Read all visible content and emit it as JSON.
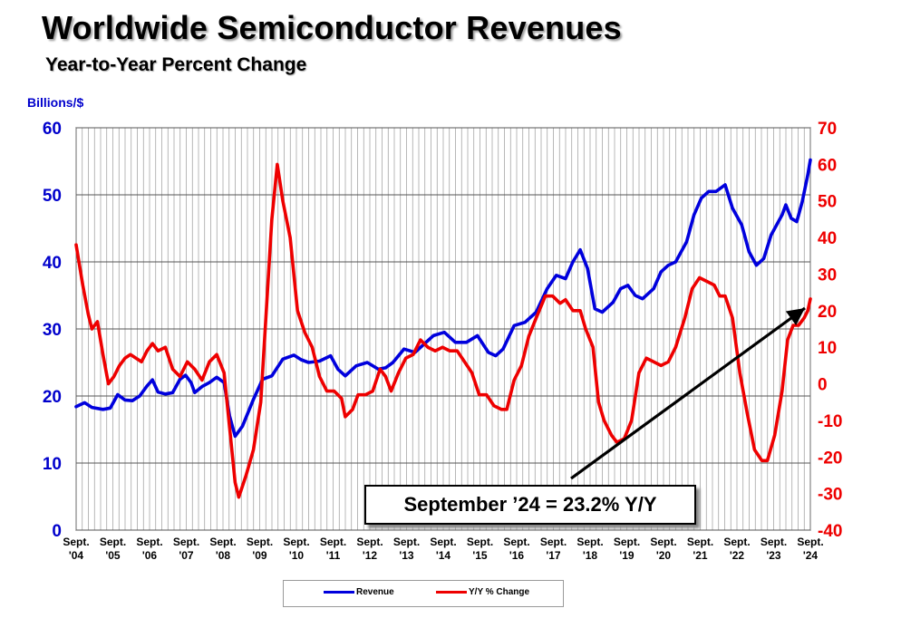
{
  "chart_data": {
    "type": "line",
    "title": "Worldwide Semiconductor Revenues",
    "subtitle": "Year-to-Year Percent Change",
    "ylabel_left": "Billions/$",
    "ylim_left": [
      0,
      60
    ],
    "yticks_left": [
      0,
      10,
      20,
      30,
      40,
      50,
      60
    ],
    "ylim_right": [
      -40,
      70
    ],
    "yticks_right": [
      -40,
      -30,
      -20,
      -10,
      0,
      10,
      20,
      30,
      40,
      50,
      60,
      70
    ],
    "x_range": [
      2004.67,
      2024.67
    ],
    "x_ticks": [
      {
        "line1": "Sept.",
        "line2": "'04"
      },
      {
        "line1": "Sept.",
        "line2": "'05"
      },
      {
        "line1": "Sept.",
        "line2": "'06"
      },
      {
        "line1": "Sept.",
        "line2": "'07"
      },
      {
        "line1": "Sept.",
        "line2": "'08"
      },
      {
        "line1": "Sept.",
        "line2": "'09"
      },
      {
        "line1": "Sept.",
        "line2": "'10"
      },
      {
        "line1": "Sept.",
        "line2": "'11"
      },
      {
        "line1": "Sept.",
        "line2": "'12"
      },
      {
        "line1": "Sept.",
        "line2": "'13"
      },
      {
        "line1": "Sept.",
        "line2": "'14"
      },
      {
        "line1": "Sept.",
        "line2": "'15"
      },
      {
        "line1": "Sept.",
        "line2": "'16"
      },
      {
        "line1": "Sept.",
        "line2": "'17"
      },
      {
        "line1": "Sept.",
        "line2": "'18"
      },
      {
        "line1": "Sept.",
        "line2": "'19"
      },
      {
        "line1": "Sept.",
        "line2": "'20"
      },
      {
        "line1": "Sept.",
        "line2": "'21"
      },
      {
        "line1": "Sept.",
        "line2": "'22"
      },
      {
        "line1": "Sept.",
        "line2": "'23"
      },
      {
        "line1": "Sept.",
        "line2": "'24"
      }
    ],
    "grid": true,
    "series": [
      {
        "name": "Revenue",
        "axis": "left",
        "color": "#0000dd",
        "points": [
          [
            2004.67,
            18.4
          ],
          [
            2004.9,
            19.0
          ],
          [
            2005.1,
            18.3
          ],
          [
            2005.4,
            18.0
          ],
          [
            2005.6,
            18.2
          ],
          [
            2005.8,
            20.2
          ],
          [
            2006.0,
            19.4
          ],
          [
            2006.2,
            19.3
          ],
          [
            2006.4,
            20.0
          ],
          [
            2006.6,
            21.5
          ],
          [
            2006.75,
            22.4
          ],
          [
            2006.9,
            20.6
          ],
          [
            2007.1,
            20.3
          ],
          [
            2007.3,
            20.5
          ],
          [
            2007.5,
            22.5
          ],
          [
            2007.65,
            23.1
          ],
          [
            2007.8,
            22.0
          ],
          [
            2007.9,
            20.5
          ],
          [
            2008.1,
            21.4
          ],
          [
            2008.3,
            22.0
          ],
          [
            2008.5,
            22.8
          ],
          [
            2008.7,
            22.0
          ],
          [
            2008.85,
            17.0
          ],
          [
            2009.0,
            14.0
          ],
          [
            2009.2,
            15.5
          ],
          [
            2009.5,
            19.5
          ],
          [
            2009.75,
            22.5
          ],
          [
            2010.0,
            23.0
          ],
          [
            2010.3,
            25.5
          ],
          [
            2010.6,
            26.1
          ],
          [
            2010.8,
            25.4
          ],
          [
            2011.0,
            25.0
          ],
          [
            2011.3,
            25.2
          ],
          [
            2011.6,
            26.0
          ],
          [
            2011.8,
            24.0
          ],
          [
            2012.0,
            23.0
          ],
          [
            2012.3,
            24.5
          ],
          [
            2012.6,
            25.0
          ],
          [
            2012.9,
            24.0
          ],
          [
            2013.1,
            24.2
          ],
          [
            2013.3,
            25.0
          ],
          [
            2013.6,
            27.0
          ],
          [
            2013.9,
            26.5
          ],
          [
            2014.1,
            27.5
          ],
          [
            2014.4,
            29.0
          ],
          [
            2014.7,
            29.5
          ],
          [
            2015.0,
            28.0
          ],
          [
            2015.3,
            28.0
          ],
          [
            2015.6,
            29.0
          ],
          [
            2015.9,
            26.5
          ],
          [
            2016.1,
            26.0
          ],
          [
            2016.3,
            27.0
          ],
          [
            2016.6,
            30.5
          ],
          [
            2016.9,
            31.0
          ],
          [
            2017.2,
            32.5
          ],
          [
            2017.5,
            36.0
          ],
          [
            2017.75,
            38.0
          ],
          [
            2018.0,
            37.5
          ],
          [
            2018.2,
            40.0
          ],
          [
            2018.4,
            41.8
          ],
          [
            2018.6,
            39.0
          ],
          [
            2018.8,
            33.0
          ],
          [
            2019.0,
            32.5
          ],
          [
            2019.3,
            34.0
          ],
          [
            2019.5,
            36.0
          ],
          [
            2019.7,
            36.5
          ],
          [
            2019.9,
            35.0
          ],
          [
            2020.1,
            34.5
          ],
          [
            2020.4,
            36.0
          ],
          [
            2020.6,
            38.5
          ],
          [
            2020.8,
            39.5
          ],
          [
            2021.0,
            40.0
          ],
          [
            2021.3,
            43.0
          ],
          [
            2021.5,
            47.0
          ],
          [
            2021.7,
            49.5
          ],
          [
            2021.9,
            50.5
          ],
          [
            2022.1,
            50.5
          ],
          [
            2022.35,
            51.5
          ],
          [
            2022.55,
            48.0
          ],
          [
            2022.8,
            45.5
          ],
          [
            2023.0,
            41.5
          ],
          [
            2023.2,
            39.5
          ],
          [
            2023.4,
            40.5
          ],
          [
            2023.6,
            44.0
          ],
          [
            2023.9,
            47.0
          ],
          [
            2024.0,
            48.5
          ],
          [
            2024.15,
            46.5
          ],
          [
            2024.3,
            46.0
          ],
          [
            2024.45,
            49.0
          ],
          [
            2024.6,
            53.0
          ],
          [
            2024.67,
            55.2
          ]
        ]
      },
      {
        "name": "Y/Y % Change",
        "axis": "right",
        "color": "#ee0000",
        "points": [
          [
            2004.67,
            38
          ],
          [
            2004.85,
            27
          ],
          [
            2005.0,
            19
          ],
          [
            2005.1,
            15
          ],
          [
            2005.25,
            17
          ],
          [
            2005.4,
            8
          ],
          [
            2005.55,
            0
          ],
          [
            2005.7,
            2
          ],
          [
            2005.85,
            5
          ],
          [
            2006.0,
            7
          ],
          [
            2006.15,
            8
          ],
          [
            2006.3,
            7
          ],
          [
            2006.45,
            6
          ],
          [
            2006.6,
            9
          ],
          [
            2006.75,
            11
          ],
          [
            2006.9,
            9
          ],
          [
            2007.1,
            10
          ],
          [
            2007.3,
            4
          ],
          [
            2007.5,
            2
          ],
          [
            2007.7,
            6
          ],
          [
            2007.9,
            4
          ],
          [
            2008.1,
            1
          ],
          [
            2008.3,
            6
          ],
          [
            2008.5,
            8
          ],
          [
            2008.7,
            3
          ],
          [
            2008.85,
            -12
          ],
          [
            2009.0,
            -27
          ],
          [
            2009.1,
            -31
          ],
          [
            2009.3,
            -25
          ],
          [
            2009.5,
            -18
          ],
          [
            2009.7,
            -5
          ],
          [
            2009.85,
            20
          ],
          [
            2010.0,
            45
          ],
          [
            2010.15,
            60
          ],
          [
            2010.3,
            50
          ],
          [
            2010.5,
            40
          ],
          [
            2010.7,
            20
          ],
          [
            2010.9,
            14
          ],
          [
            2011.1,
            10
          ],
          [
            2011.3,
            2
          ],
          [
            2011.5,
            -2
          ],
          [
            2011.7,
            -2
          ],
          [
            2011.9,
            -4
          ],
          [
            2012.0,
            -9
          ],
          [
            2012.2,
            -7
          ],
          [
            2012.35,
            -3
          ],
          [
            2012.55,
            -3
          ],
          [
            2012.75,
            -2
          ],
          [
            2012.95,
            4
          ],
          [
            2013.1,
            2
          ],
          [
            2013.25,
            -2
          ],
          [
            2013.45,
            3
          ],
          [
            2013.65,
            7
          ],
          [
            2013.85,
            8
          ],
          [
            2014.05,
            12
          ],
          [
            2014.25,
            10
          ],
          [
            2014.45,
            9
          ],
          [
            2014.65,
            10
          ],
          [
            2014.85,
            9
          ],
          [
            2015.05,
            9
          ],
          [
            2015.25,
            6
          ],
          [
            2015.45,
            3
          ],
          [
            2015.65,
            -3
          ],
          [
            2015.85,
            -3
          ],
          [
            2016.05,
            -6
          ],
          [
            2016.25,
            -7
          ],
          [
            2016.4,
            -7
          ],
          [
            2016.6,
            1
          ],
          [
            2016.8,
            5
          ],
          [
            2017.0,
            13
          ],
          [
            2017.2,
            18
          ],
          [
            2017.45,
            24
          ],
          [
            2017.65,
            24
          ],
          [
            2017.85,
            22
          ],
          [
            2018.0,
            23
          ],
          [
            2018.2,
            20
          ],
          [
            2018.4,
            20
          ],
          [
            2018.55,
            15
          ],
          [
            2018.75,
            10
          ],
          [
            2018.9,
            -5
          ],
          [
            2019.05,
            -10
          ],
          [
            2019.25,
            -14
          ],
          [
            2019.4,
            -16
          ],
          [
            2019.6,
            -15
          ],
          [
            2019.8,
            -10
          ],
          [
            2020.0,
            3
          ],
          [
            2020.2,
            7
          ],
          [
            2020.4,
            6
          ],
          [
            2020.6,
            5
          ],
          [
            2020.8,
            6
          ],
          [
            2021.0,
            10
          ],
          [
            2021.25,
            18
          ],
          [
            2021.45,
            26
          ],
          [
            2021.65,
            29
          ],
          [
            2021.85,
            28
          ],
          [
            2022.05,
            27
          ],
          [
            2022.2,
            24
          ],
          [
            2022.35,
            24
          ],
          [
            2022.55,
            18
          ],
          [
            2022.75,
            3
          ],
          [
            2022.95,
            -8
          ],
          [
            2023.15,
            -18
          ],
          [
            2023.35,
            -21
          ],
          [
            2023.5,
            -21
          ],
          [
            2023.7,
            -14
          ],
          [
            2023.9,
            -2
          ],
          [
            2024.05,
            12
          ],
          [
            2024.2,
            16
          ],
          [
            2024.35,
            16
          ],
          [
            2024.5,
            18
          ],
          [
            2024.6,
            20
          ],
          [
            2024.67,
            23.2
          ]
        ]
      }
    ],
    "legend": [
      {
        "label": "Revenue",
        "color": "#0000dd"
      },
      {
        "label": "Y/Y % Change",
        "color": "#ee0000"
      }
    ],
    "annotation": "September ’24 = 23.2% Y/Y"
  }
}
